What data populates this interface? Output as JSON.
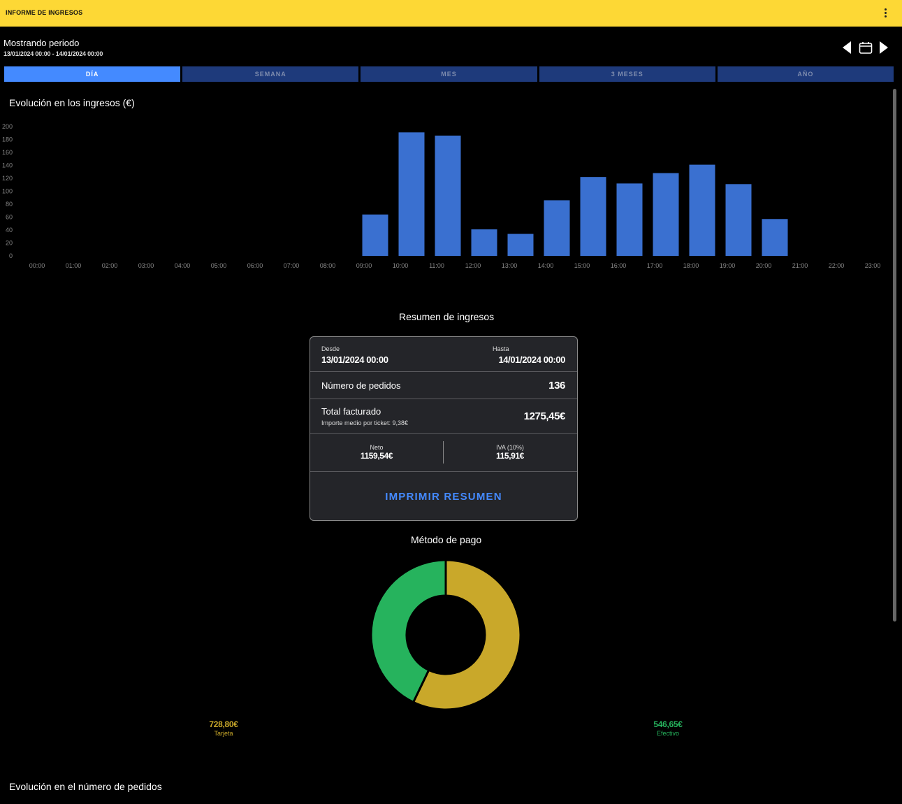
{
  "header": {
    "title": "INFORME DE INGRESOS"
  },
  "period": {
    "label": "Mostrando periodo",
    "range": "13/01/2024 00:00 - 14/01/2024 00:00"
  },
  "tabs": [
    {
      "label": "DÍA",
      "active": true
    },
    {
      "label": "SEMANA",
      "active": false
    },
    {
      "label": "MES",
      "active": false
    },
    {
      "label": "3 MESES",
      "active": false
    },
    {
      "label": "AÑO",
      "active": false
    }
  ],
  "revenue_section": {
    "title": "Evolución en los ingresos (€)"
  },
  "summary": {
    "title": "Resumen de ingresos",
    "from_label": "Desde",
    "from_value": "13/01/2024 00:00",
    "to_label": "Hasta",
    "to_value": "14/01/2024 00:00",
    "orders_label": "Número de pedidos",
    "orders_value": "136",
    "total_label": "Total facturado",
    "avg_ticket": "Importe medio por ticket: 9,38€",
    "total_value": "1275,45€",
    "net_label": "Neto",
    "net_value": "1159,54€",
    "vat_label": "IVA (10%)",
    "vat_value": "115,91€",
    "print_button": "IMPRIMIR RESUMEN"
  },
  "payment": {
    "title": "Método de pago",
    "card_value": "728,80€",
    "card_label": "Tarjeta",
    "cash_value": "546,65€",
    "cash_label": "Efectivo"
  },
  "orders_section": {
    "title": "Evolución en el número de pedidos"
  },
  "colors": {
    "bar": "#3A70D0",
    "card_segment": "#C9A82A",
    "cash_segment": "#26B35D",
    "accent": "#448AFF",
    "header": "#FDD835"
  },
  "chart_data": [
    {
      "type": "bar",
      "categories": [
        "00:00",
        "01:00",
        "02:00",
        "03:00",
        "04:00",
        "05:00",
        "06:00",
        "07:00",
        "08:00",
        "09:00",
        "10:00",
        "11:00",
        "12:00",
        "13:00",
        "14:00",
        "15:00",
        "16:00",
        "17:00",
        "18:00",
        "19:00",
        "20:00",
        "21:00",
        "22:00",
        "23:00"
      ],
      "values": [
        0,
        0,
        0,
        0,
        0,
        0,
        0,
        0,
        0,
        64,
        191,
        186,
        41,
        34,
        86,
        122,
        112,
        128,
        141,
        111,
        57,
        0,
        0,
        0
      ],
      "yticks": [
        0,
        20,
        40,
        60,
        80,
        100,
        120,
        140,
        160,
        180,
        200
      ],
      "ylim": [
        0,
        200
      ],
      "grid": false,
      "legend": "none"
    },
    {
      "type": "pie",
      "categories": [
        "Tarjeta",
        "Efectivo"
      ],
      "values": [
        728.8,
        546.65
      ],
      "donut": true
    }
  ]
}
